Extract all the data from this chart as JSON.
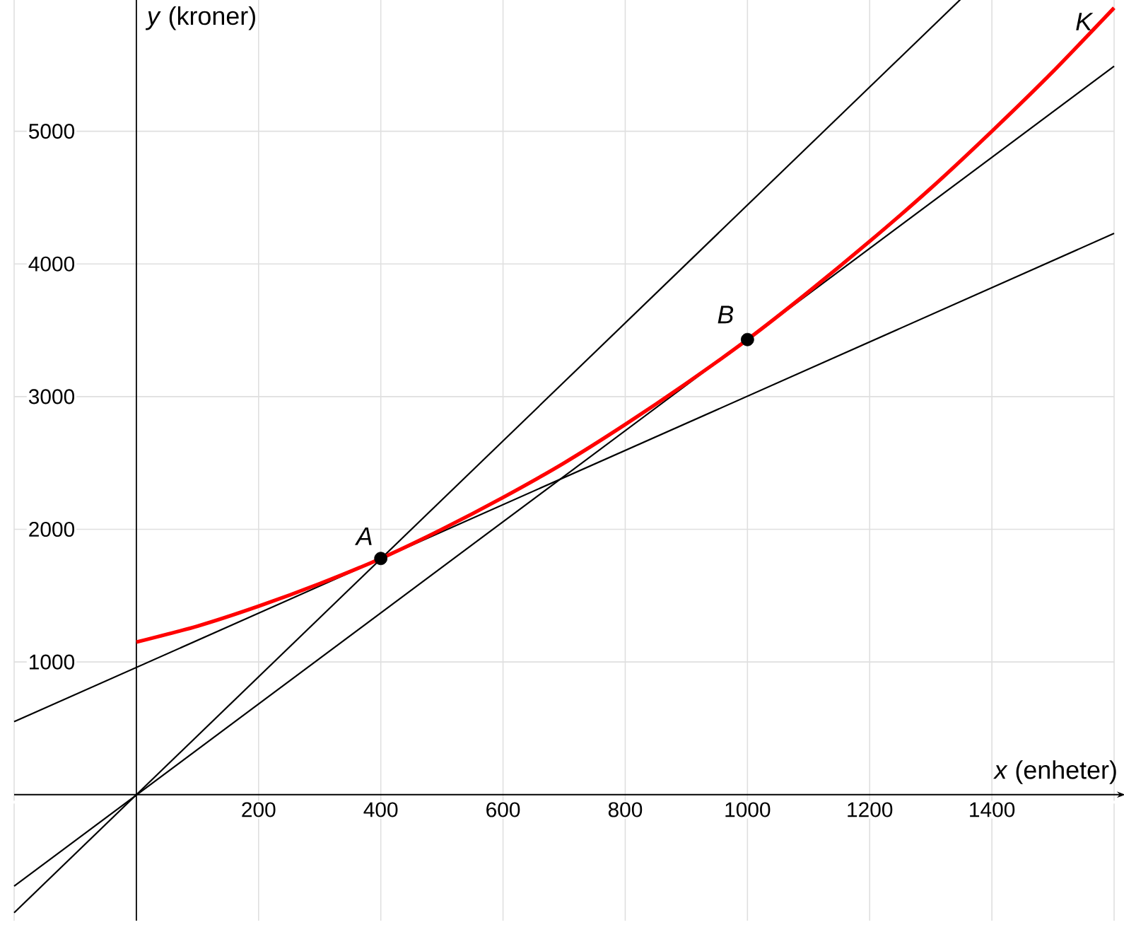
{
  "chart_data": {
    "type": "line",
    "xlabel": "*x* (enheter)",
    "ylabel": "*y* (kroner)",
    "xlim": [
      -200,
      1600
    ],
    "ylim": [
      -950,
      6000
    ],
    "xticks": [
      {
        "value": -200,
        "label": null
      },
      200,
      400,
      600,
      800,
      1000,
      1200,
      1400,
      {
        "value": 1600,
        "label": null
      }
    ],
    "yticks": [
      1000,
      2000,
      3000,
      4000,
      5000,
      {
        "value": 6000,
        "label": null
      }
    ],
    "grid": true,
    "series": [
      {
        "color": "#000000",
        "x": [
          -200,
          1350
        ],
        "values": [
          -890,
          6000
        ]
      },
      {
        "color": "#000000",
        "x": [
          -200,
          1600
        ],
        "values": [
          -690,
          5490
        ]
      },
      {
        "color": "#000000",
        "x": [
          -200,
          1600
        ],
        "values": [
          550,
          4230
        ]
      },
      {
        "color": "#ff0000",
        "x": [
          0,
          100,
          200,
          300,
          400,
          500,
          600,
          700,
          800,
          900,
          1000,
          1100,
          1200,
          1300,
          1400,
          1500,
          1600
        ],
        "values": [
          1150,
          1270,
          1420,
          1590,
          1780,
          2000,
          2240,
          2500,
          2790,
          3100,
          3430,
          3790,
          4170,
          4570,
          5000,
          5450,
          5930
        ]
      },
      {
        "type": "scatter",
        "color": "#000000",
        "marker": "circle",
        "x": [
          400,
          1000
        ],
        "values": [
          1780,
          3430
        ]
      }
    ],
    "annotations": [
      {
        "text": "A",
        "x": 400,
        "y": 1780
      },
      {
        "text": "B",
        "x": 1000,
        "y": 3430
      },
      {
        "text": "K",
        "x": 1600,
        "y": 5930
      }
    ]
  }
}
